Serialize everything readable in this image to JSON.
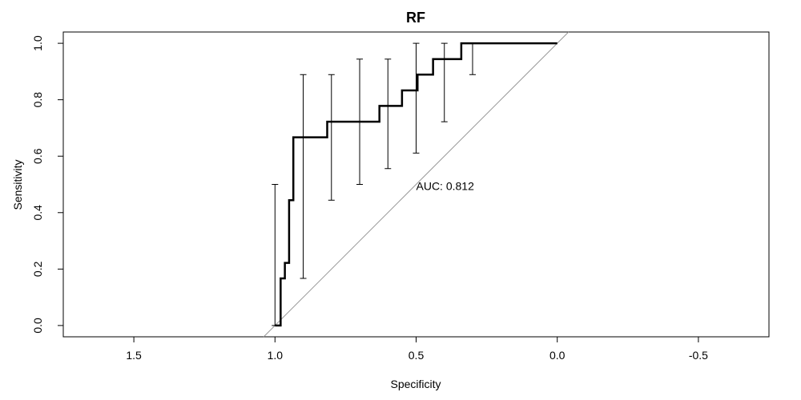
{
  "chart_data": {
    "type": "line",
    "title": "RF",
    "xlabel": "Specificity",
    "ylabel": "Sensitivity",
    "x_reversed": true,
    "xlim": [
      1.75,
      -0.75
    ],
    "ylim": [
      -0.04,
      1.04
    ],
    "x_ticks": [
      1.5,
      1.0,
      0.5,
      0.0,
      -0.5
    ],
    "x_tick_labels": [
      "1.5",
      "1.0",
      "0.5",
      "0.0",
      "-0.5"
    ],
    "y_ticks": [
      0.0,
      0.2,
      0.4,
      0.6,
      0.8,
      1.0
    ],
    "y_tick_labels": [
      "0.0",
      "0.2",
      "0.4",
      "0.6",
      "0.8",
      "1.0"
    ],
    "grid": false,
    "diagonal": {
      "from": [
        1.0,
        0.0
      ],
      "to": [
        0.0,
        1.0
      ],
      "color": "#999999"
    },
    "roc_curve": {
      "color": "#000000",
      "points": [
        [
          1.0,
          0.0
        ],
        [
          0.98,
          0.0
        ],
        [
          0.98,
          0.167
        ],
        [
          0.965,
          0.167
        ],
        [
          0.965,
          0.222
        ],
        [
          0.95,
          0.222
        ],
        [
          0.95,
          0.444
        ],
        [
          0.935,
          0.444
        ],
        [
          0.935,
          0.667
        ],
        [
          0.815,
          0.667
        ],
        [
          0.815,
          0.722
        ],
        [
          0.63,
          0.722
        ],
        [
          0.63,
          0.778
        ],
        [
          0.55,
          0.778
        ],
        [
          0.55,
          0.833
        ],
        [
          0.495,
          0.833
        ],
        [
          0.495,
          0.889
        ],
        [
          0.44,
          0.889
        ],
        [
          0.44,
          0.944
        ],
        [
          0.34,
          0.944
        ],
        [
          0.34,
          1.0
        ],
        [
          0.0,
          1.0
        ]
      ]
    },
    "error_bars": [
      {
        "x": 1.0,
        "low": 0.0,
        "high": 0.5
      },
      {
        "x": 0.9,
        "low": 0.167,
        "high": 0.889
      },
      {
        "x": 0.8,
        "low": 0.444,
        "high": 0.889
      },
      {
        "x": 0.7,
        "low": 0.5,
        "high": 0.944
      },
      {
        "x": 0.6,
        "low": 0.556,
        "high": 0.944
      },
      {
        "x": 0.5,
        "low": 0.611,
        "high": 1.0
      },
      {
        "x": 0.4,
        "low": 0.722,
        "high": 1.0
      },
      {
        "x": 0.3,
        "low": 0.889,
        "high": 1.0
      }
    ],
    "annotation": {
      "text": "AUC: 0.812",
      "x": 0.5,
      "y": 0.48
    }
  }
}
